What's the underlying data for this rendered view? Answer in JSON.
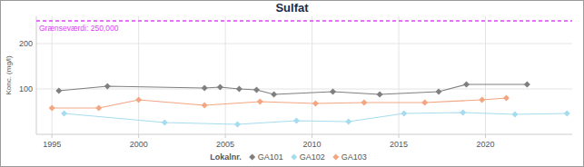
{
  "chart_data": {
    "type": "line",
    "title": "Sulfat",
    "y_label": "Konc. (mg/l)",
    "legend_title": "Lokalnr.",
    "legend": "bottom",
    "grid": true,
    "marker": "diamond",
    "xlim": [
      1994.1,
      2025
    ],
    "xticks": [
      1995,
      2000,
      2005,
      2010,
      2015,
      2020
    ],
    "ylim": [
      0,
      260
    ],
    "yticks": [
      100,
      200
    ],
    "threshold": {
      "value": 250,
      "label": "Grænseværdi: 250,000",
      "color": "#e040fb"
    },
    "series": [
      {
        "name": "GA101",
        "color": "#7f7f7f",
        "x": [
          1995.4,
          1998.2,
          2003.8,
          2004.7,
          2005.8,
          2006.8,
          2007.8,
          2011.2,
          2013.9,
          2017.3,
          2018.9,
          2022.4
        ],
        "values": [
          96,
          106,
          102,
          104,
          100,
          98,
          88,
          94,
          88,
          94,
          110,
          110
        ]
      },
      {
        "name": "GA102",
        "color": "#a6dcef",
        "x": [
          1995.7,
          2001.5,
          2005.7,
          2009.1,
          2012.1,
          2015.3,
          2018.7,
          2021.7,
          2024.7
        ],
        "values": [
          46,
          26,
          22,
          30,
          28,
          46,
          48,
          44,
          46
        ]
      },
      {
        "name": "GA103",
        "color": "#f4a582",
        "x": [
          1995,
          1997.7,
          2000,
          2003.8,
          2007,
          2010.2,
          2013,
          2016.5,
          2019.8,
          2021.2
        ],
        "values": [
          58,
          58,
          76,
          64,
          72,
          68,
          70,
          70,
          76,
          80
        ]
      }
    ]
  }
}
